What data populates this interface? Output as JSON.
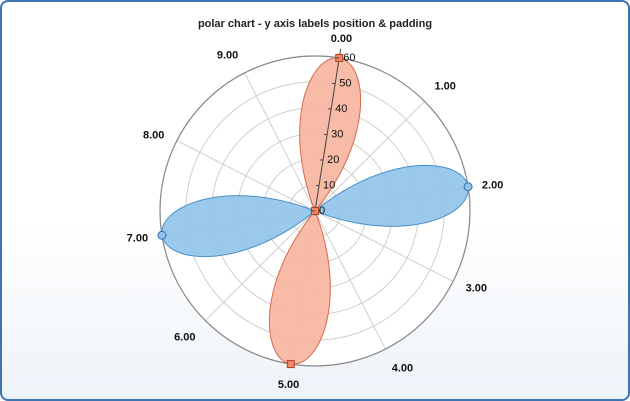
{
  "chart_title": "polar chart - y axis labels position & padding",
  "colors": {
    "frame_border": "#3f74b2",
    "blue_fill": "#8fc3ea",
    "blue_stroke": "#4a90c8",
    "red_fill": "#f6b49d",
    "red_stroke": "#d86a4a",
    "grid": "#cfcfcf",
    "axis": "#444444"
  },
  "chart_data": {
    "type": "polar",
    "title": "polar chart - y axis labels position & padding",
    "x_tick_labels": [
      "0.00",
      "1.00",
      "2.00",
      "3.00",
      "4.00",
      "5.00",
      "6.00",
      "7.00",
      "8.00",
      "9.00"
    ],
    "y_tick_labels": [
      "0",
      "10",
      "20",
      "30",
      "40",
      "50",
      "60"
    ],
    "ylim": [
      0,
      60
    ],
    "series": [
      {
        "color": "#8fc3ea",
        "marker": "circle",
        "points": [
          {
            "x": 2.0,
            "y": 60
          },
          {
            "x": 7.0,
            "y": 60
          }
        ]
      },
      {
        "color": "#f6b49d",
        "marker": "square",
        "points": [
          {
            "x": 0.0,
            "y": 60
          },
          {
            "x": 5.0,
            "y": 60
          }
        ]
      }
    ]
  }
}
